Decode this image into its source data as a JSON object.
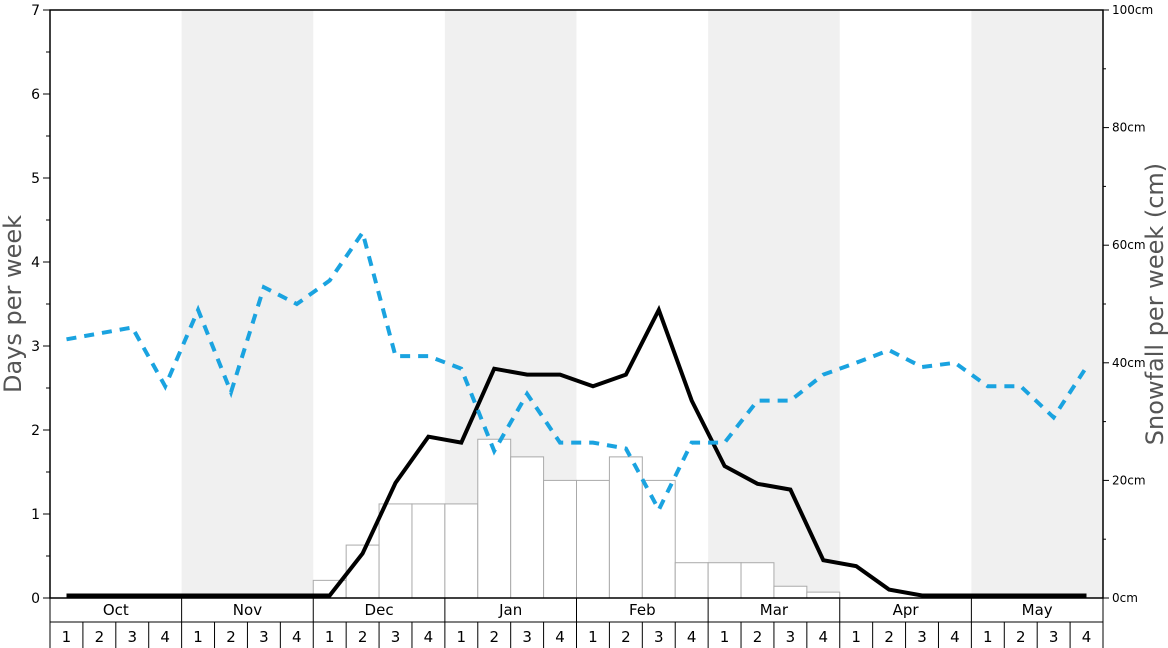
{
  "chart_data": {
    "type": "bar",
    "ylabel_left": "Days per week",
    "ylabel_right": "Snowfall per week (cm)",
    "ylim_left": [
      0,
      7
    ],
    "ylim_right": [
      0,
      100
    ],
    "left_ticks": [
      "0",
      "1",
      "2",
      "3",
      "4",
      "5",
      "6",
      "7"
    ],
    "right_ticks": [
      "0cm",
      "20cm",
      "40cm",
      "60cm",
      "80cm",
      "100cm"
    ],
    "months": [
      "Oct",
      "Nov",
      "Dec",
      "Jan",
      "Feb",
      "Mar",
      "Apr",
      "May"
    ],
    "weeks": [
      "1",
      "2",
      "3",
      "4"
    ],
    "colors": {
      "band": "#f0f0f0",
      "bar_fill": "#ffffff",
      "bar_stroke": "#aaaaaa",
      "solid_line": "#000000",
      "dashed_line": "#1aa3e0"
    },
    "series": [
      {
        "kind": "bars",
        "axis": "right",
        "unit": "cm",
        "values": [
          0,
          0,
          0,
          0,
          0,
          0,
          0,
          0,
          3,
          9,
          16,
          16,
          16,
          27,
          24,
          20,
          20,
          24,
          20,
          6,
          6,
          6,
          2,
          1,
          0,
          0,
          0,
          0,
          0,
          0,
          0,
          0
        ]
      },
      {
        "kind": "line",
        "style": "solid",
        "axis": "left",
        "values": [
          0.03,
          0.03,
          0.03,
          0.03,
          0.03,
          0.03,
          0.03,
          0.03,
          0.03,
          0.53,
          1.37,
          1.92,
          1.85,
          2.73,
          2.66,
          2.66,
          2.52,
          2.66,
          3.43,
          2.35,
          1.57,
          1.36,
          1.29,
          0.45,
          0.38,
          0.1,
          0.03,
          0.03,
          0.03,
          0.03,
          0.03,
          0.03
        ]
      },
      {
        "kind": "line",
        "style": "dashed",
        "axis": "left",
        "values": [
          3.08,
          3.15,
          3.22,
          2.52,
          3.43,
          2.45,
          3.7,
          3.5,
          3.78,
          4.35,
          2.88,
          2.88,
          2.73,
          1.75,
          2.43,
          1.85,
          1.85,
          1.78,
          1.05,
          1.85,
          1.85,
          2.35,
          2.35,
          2.66,
          2.8,
          2.95,
          2.75,
          2.8,
          2.52,
          2.52,
          2.15,
          2.75
        ]
      }
    ]
  }
}
